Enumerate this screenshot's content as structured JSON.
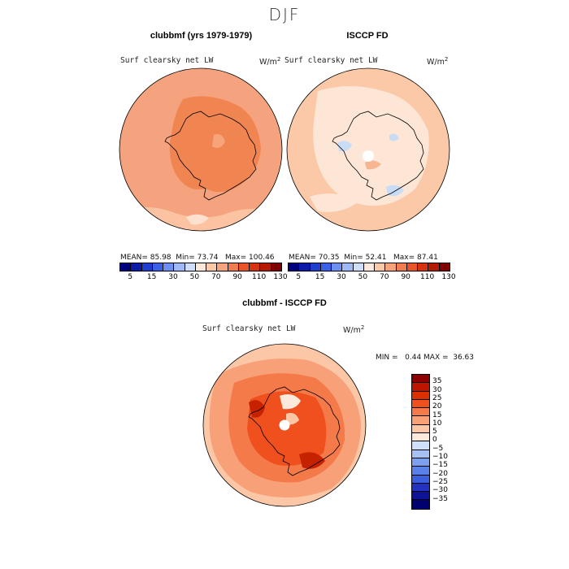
{
  "season": "DJF",
  "panels": {
    "left": {
      "title": "clubbmf (yrs 1979-1979)",
      "subtitle": "Surf clearsky net LW",
      "units_base": "W/m",
      "units_exp": "2",
      "mean_label": "MEAN=",
      "mean": "85.98",
      "min_label": "Min=",
      "min": "73.74",
      "max_label": "Max=",
      "max": "100.46"
    },
    "right": {
      "title": "ISCCP FD",
      "subtitle": "Surf clearsky net LW",
      "units_base": "W/m",
      "units_exp": "2",
      "mean_label": "MEAN=",
      "mean": "70.35",
      "min_label": "Min=",
      "min": "52.41",
      "max_label": "Max=",
      "max": "87.41"
    },
    "diff": {
      "title": "clubbmf - ISCCP FD",
      "subtitle": "Surf clearsky net LW",
      "units_base": "W/m",
      "units_exp": "2",
      "stats": "MIN =   0.44 MAX =  36.63"
    }
  },
  "abs_colorbar": {
    "labels": [
      "5",
      "15",
      "30",
      "50",
      "70",
      "90",
      "110",
      "130"
    ],
    "colors": [
      "#000080",
      "#0d1ca8",
      "#1f3ecf",
      "#3b62e6",
      "#6b90f2",
      "#9fb8f7",
      "#cfdffb",
      "#fde9dc",
      "#fbc9a8",
      "#f7a47a",
      "#f07c50",
      "#e9542b",
      "#d8330f",
      "#b51b04",
      "#7e0000"
    ]
  },
  "diff_colorbar": {
    "labels": [
      "35",
      "30",
      "25",
      "20",
      "15",
      "10",
      "5",
      "0",
      "−5",
      "−10",
      "−15",
      "−20",
      "−25",
      "−30",
      "−35"
    ],
    "colors": [
      "#8e0000",
      "#bf1400",
      "#dd3000",
      "#f0501e",
      "#f57a4a",
      "#f8a179",
      "#fbc7a6",
      "#fde9dc",
      "#cfe0fb",
      "#a6c2f5",
      "#7c9ff0",
      "#5a80ea",
      "#3c5fe0",
      "#2233c4",
      "#0d1296",
      "#000070"
    ]
  }
}
